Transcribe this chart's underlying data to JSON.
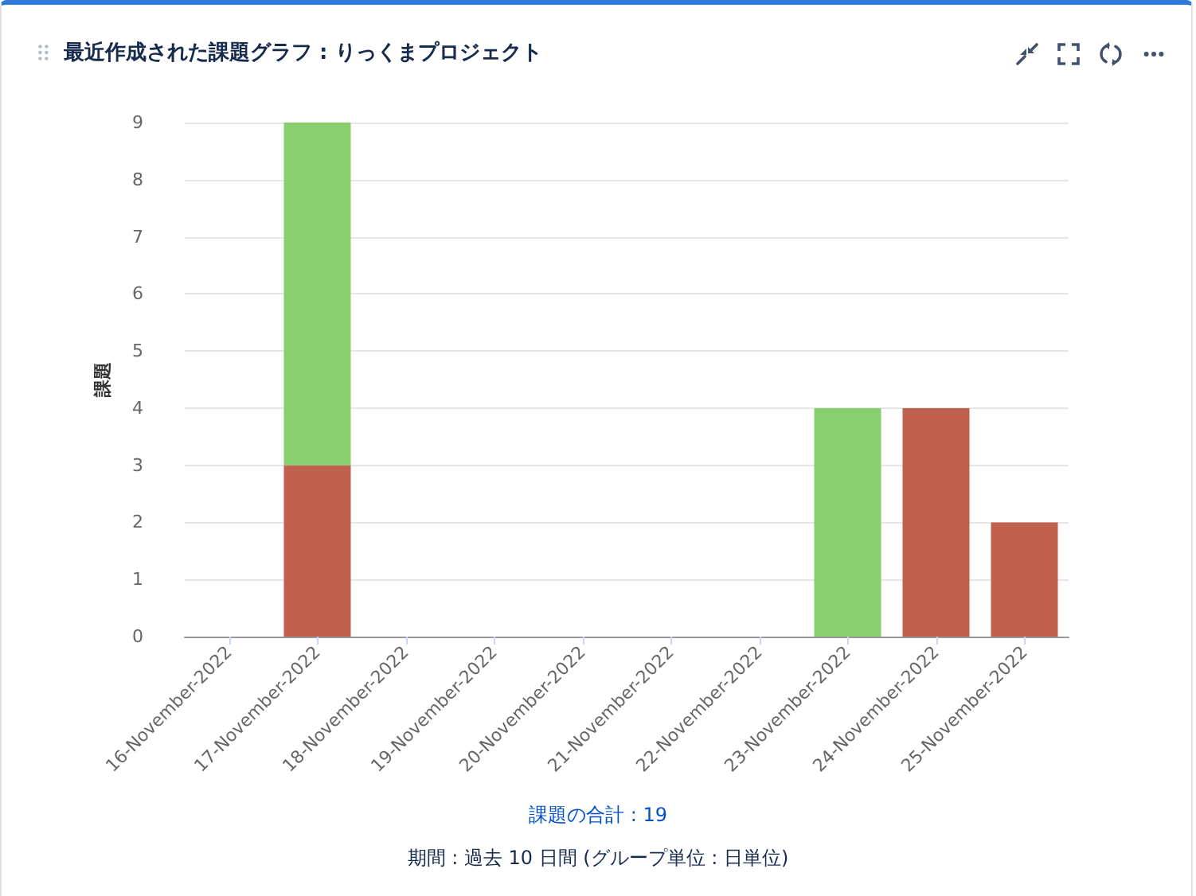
{
  "chart_data": {
    "type": "bar",
    "title": "最近作成された課題グラフ : りっくまプロジェクト",
    "ylabel": "課題",
    "categories": [
      "16-November-2022",
      "17-November-2022",
      "18-November-2022",
      "19-November-2022",
      "20-November-2022",
      "21-November-2022",
      "22-November-2022",
      "23-November-2022",
      "24-November-2022",
      "25-November-2022"
    ],
    "series": [
      {
        "color": "#c0604e",
        "values": [
          null,
          3,
          null,
          null,
          null,
          null,
          null,
          null,
          4,
          2
        ]
      },
      {
        "color": "#88cd6e",
        "values": [
          null,
          6,
          null,
          null,
          null,
          null,
          null,
          4,
          null,
          null
        ]
      }
    ],
    "stacked": true,
    "ylim": [
      0,
      9
    ],
    "yticks": [
      0,
      1,
      2,
      3,
      4,
      5,
      6,
      7,
      8,
      9
    ],
    "grid": "y",
    "annotations": [
      "課題の合計 : 19",
      "期間 : 過去 10 日間 (グループ単位 : 日単位)"
    ]
  }
}
